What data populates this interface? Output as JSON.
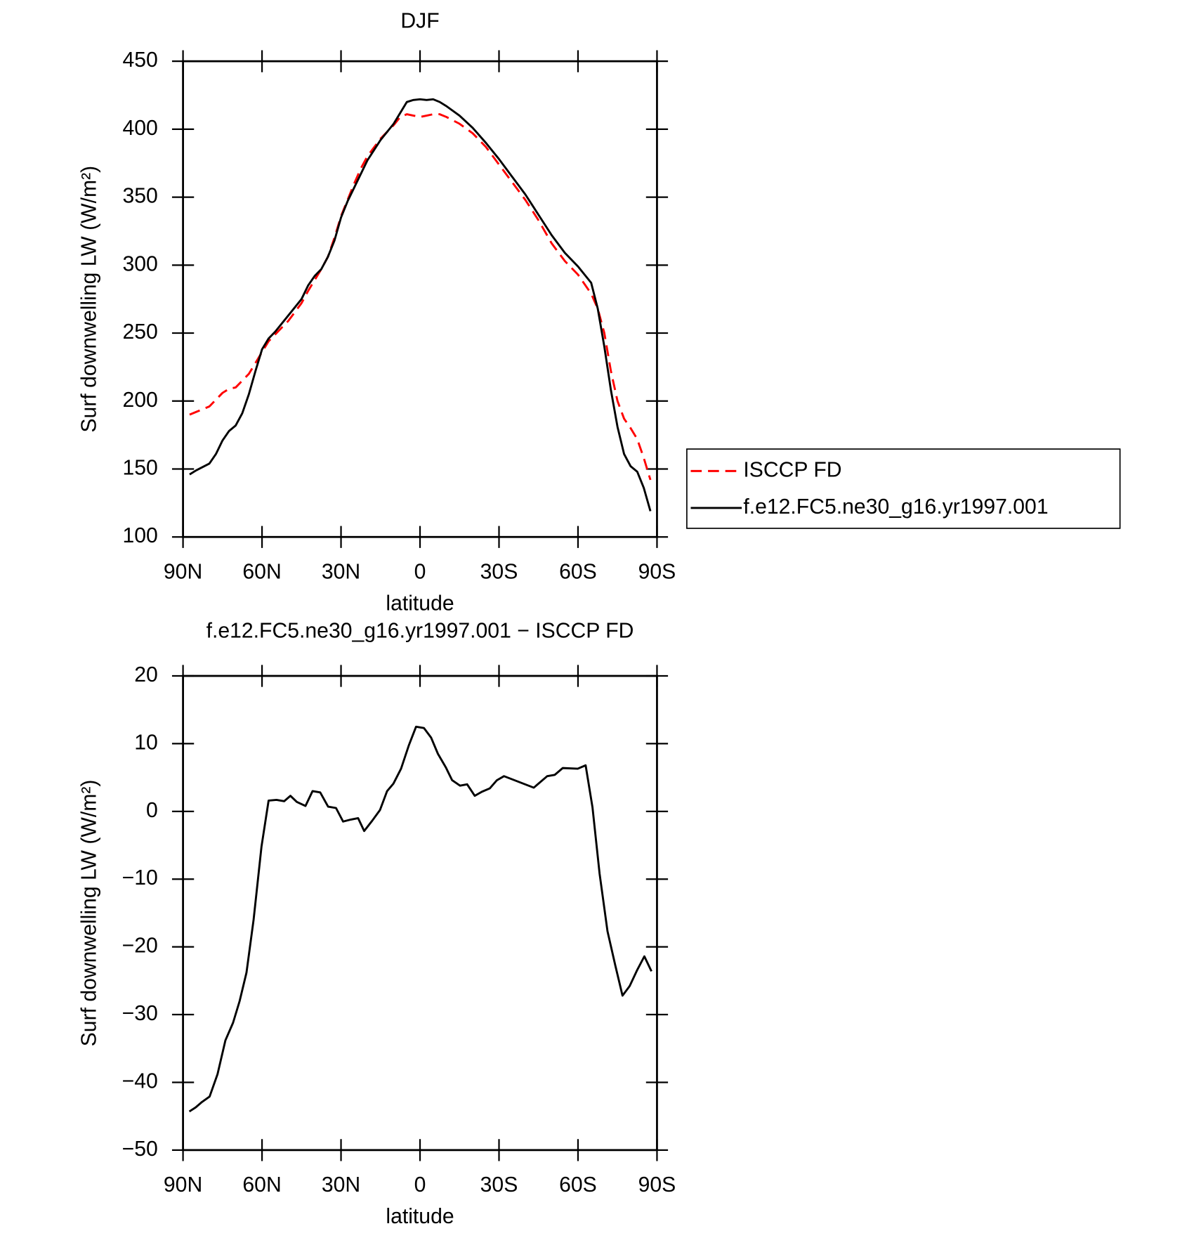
{
  "chart_data": [
    {
      "type": "line",
      "title": "DJF",
      "x_label": "latitude",
      "y_label": "Surf downwelling LW (W/m²)",
      "x": [
        87.5,
        85,
        80,
        77.5,
        75,
        72.5,
        70,
        67.5,
        65,
        62.5,
        60,
        57.5,
        55,
        50,
        45,
        42.5,
        40,
        37.5,
        35,
        32.5,
        30,
        27.5,
        25,
        22.5,
        20,
        15,
        10,
        7.5,
        5,
        2.5,
        0,
        -2.5,
        -5,
        -7.5,
        -10,
        -15,
        -20,
        -25,
        -30,
        -35,
        -40,
        -45,
        -50,
        -55,
        -60,
        -62.5,
        -65,
        -67.5,
        -70,
        -72.5,
        -75,
        -77.5,
        -80,
        -82.5,
        -85,
        -87.5
      ],
      "series": [
        {
          "name": "ISCCP FD",
          "color": "#ff0000",
          "dashed": true,
          "values": [
            190,
            192,
            196,
            201,
            206,
            209,
            210,
            215,
            220,
            228,
            236,
            244,
            249,
            259,
            272,
            281,
            289,
            297,
            306,
            320,
            336,
            348,
            360,
            371,
            380,
            393,
            403,
            409,
            411,
            410,
            409,
            410,
            411,
            411,
            409,
            404,
            397,
            387,
            374,
            361,
            348,
            333,
            316,
            303,
            293,
            286,
            279,
            268,
            250,
            222,
            200,
            187,
            180,
            172,
            158,
            142
          ]
        },
        {
          "name": "f.e12.FC5.ne30_g16.yr1997.001",
          "color": "#000000",
          "dashed": false,
          "values": [
            146,
            149,
            154,
            161,
            171,
            178,
            182,
            191,
            205,
            222,
            238,
            246,
            251,
            263,
            275,
            285,
            292,
            297,
            306,
            318,
            335,
            347,
            357,
            367,
            377,
            392,
            404,
            412,
            420,
            421.5,
            422,
            421.5,
            422,
            420,
            417,
            410,
            401,
            390,
            378,
            365,
            352,
            337,
            322,
            309,
            299,
            293,
            287,
            268,
            240,
            208,
            181,
            161,
            152,
            148,
            136,
            119
          ]
        }
      ],
      "xlim": [
        90,
        -90
      ],
      "xticks": [
        {
          "value": 90,
          "label": "90N"
        },
        {
          "value": 60,
          "label": "60N"
        },
        {
          "value": 30,
          "label": "30N"
        },
        0,
        {
          "value": -30,
          "label": "30S"
        },
        {
          "value": -60,
          "label": "60S"
        },
        {
          "value": -90,
          "label": "90S"
        }
      ],
      "ylim": [
        100,
        450
      ],
      "yticks": [
        100,
        150,
        200,
        250,
        300,
        350,
        400,
        450
      ],
      "legend": "outside-right"
    },
    {
      "type": "line",
      "title": "f.e12.FC5.ne30_g16.yr1997.001 − ISCCP FD",
      "x_label": "latitude",
      "y_label": "Surf downwelling LW (W/m²)",
      "x": [
        87.6,
        85.2,
        82.8,
        79.9,
        76.9,
        73.9,
        71,
        68.5,
        65.9,
        63.2,
        60.2,
        57.5,
        54.5,
        51.6,
        49.2,
        46.8,
        43.5,
        40.8,
        37.9,
        34.9,
        31.9,
        29.2,
        26.2,
        23.5,
        21.2,
        18.2,
        15.2,
        12.5,
        10.1,
        7.2,
        4.2,
        1.5,
        -1.5,
        -4.2,
        -6.8,
        -9.8,
        -12.2,
        -15.2,
        -17.9,
        -20.8,
        -23.5,
        -26.5,
        -29.2,
        -31.9,
        -43.2,
        -48.3,
        -51.2,
        -54.2,
        -59.9,
        -62.9,
        -65.5,
        -68.2,
        -71.2,
        -74.2,
        -76.9,
        -79.6,
        -82.5,
        -85.2,
        -87.9
      ],
      "series": [
        {
          "color": "#000000",
          "dashed": false,
          "values": [
            -44.3,
            -43.7,
            -42.9,
            -42.1,
            -38.8,
            -33.8,
            -31.2,
            -28,
            -23.8,
            -16,
            -5.2,
            1.6,
            1.7,
            1.5,
            2.3,
            1.4,
            0.8,
            3,
            2.8,
            0.7,
            0.5,
            -1.5,
            -1.2,
            -1,
            -2.9,
            -1.4,
            0.2,
            3,
            4.1,
            6.3,
            9.8,
            12.5,
            12.3,
            10.9,
            8.5,
            6.5,
            4.6,
            3.8,
            4,
            2.3,
            2.9,
            3.4,
            4.6,
            5.2,
            3.5,
            5.2,
            5.4,
            6.4,
            6.3,
            6.8,
            0.6,
            -9.2,
            -17.7,
            -22.8,
            -27.2,
            -25.8,
            -23.4,
            -21.4,
            -23.6
          ]
        }
      ],
      "xlim": [
        90,
        -90
      ],
      "xticks": [
        {
          "value": 90,
          "label": "90N"
        },
        {
          "value": 60,
          "label": "60N"
        },
        {
          "value": 30,
          "label": "30N"
        },
        0,
        {
          "value": -30,
          "label": "30S"
        },
        {
          "value": -60,
          "label": "60S"
        },
        {
          "value": -90,
          "label": "90S"
        }
      ],
      "ylim": [
        -50,
        20
      ],
      "yticks": [
        {
          "value": -50,
          "label": "−50"
        },
        {
          "value": -40,
          "label": "−40"
        },
        {
          "value": -30,
          "label": "−30"
        },
        {
          "value": -20,
          "label": "−20"
        },
        {
          "value": -10,
          "label": "−10"
        },
        0,
        10,
        20
      ]
    }
  ]
}
